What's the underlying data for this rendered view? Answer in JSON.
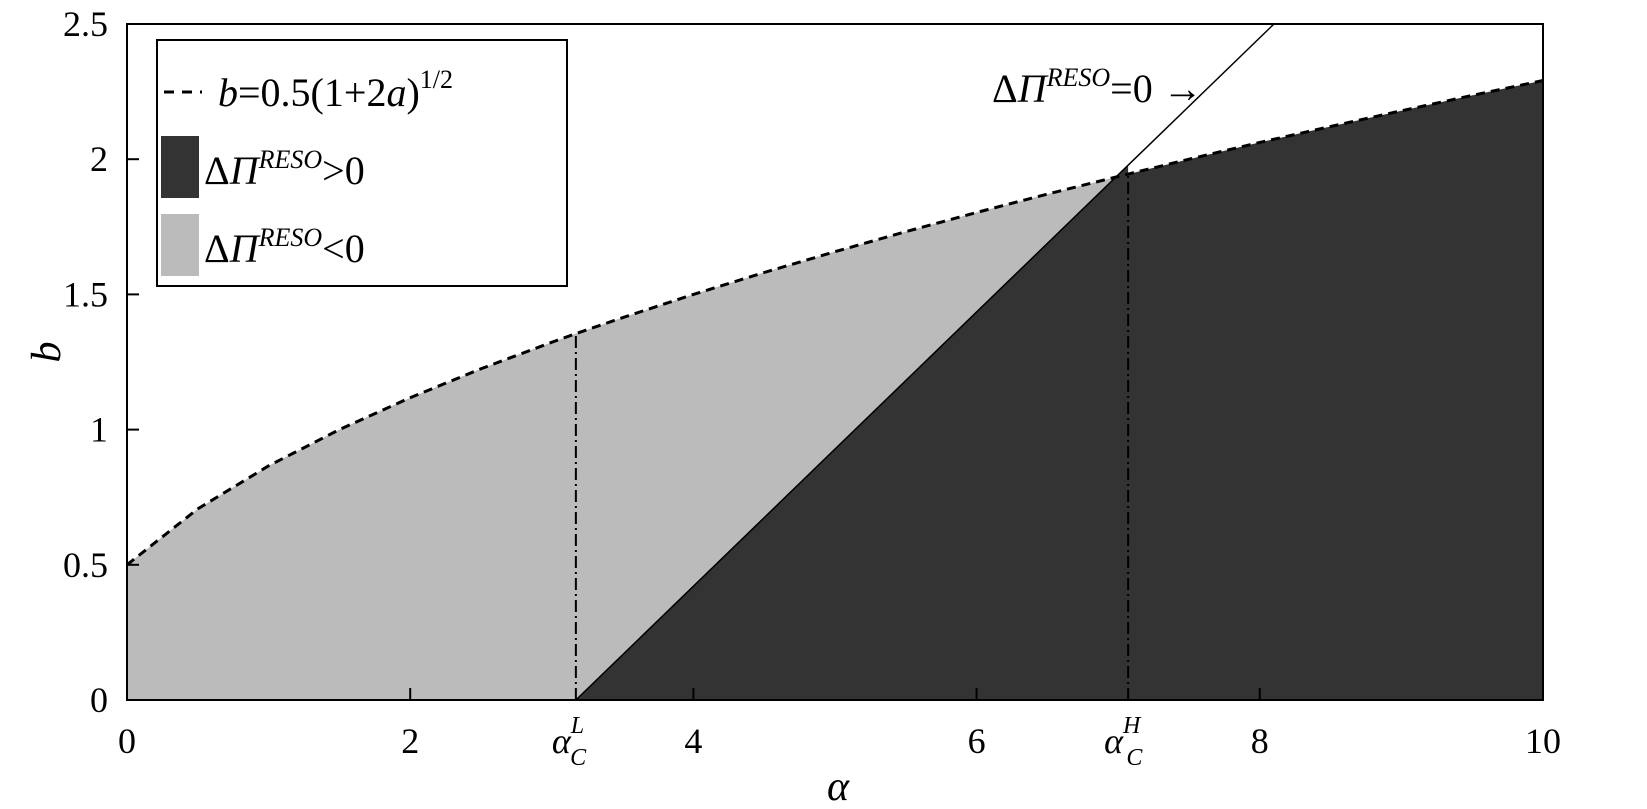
{
  "chart_data": {
    "type": "area",
    "xlabel": "α",
    "ylabel": "b",
    "xlim": [
      0,
      10
    ],
    "ylim": [
      0,
      2.5
    ],
    "x_ticks": [
      "0",
      "2",
      "4",
      "6",
      "8",
      "10"
    ],
    "y_ticks": [
      "0",
      "0.5",
      "1",
      "1.5",
      "2",
      "2.5"
    ],
    "special_x_ticks": [
      {
        "x": 3.17,
        "base": "α",
        "sub": "C",
        "sup": "L"
      },
      {
        "x": 7.07,
        "base": "α",
        "sub": "C",
        "sup": "H"
      }
    ],
    "boundary_curve": {
      "formula": "b=0.5(1+2a)^(1/2)",
      "legend_label": {
        "pre": "b",
        "mid": "=0.5(1+2",
        "it": "a",
        "post": ")",
        "sup": "1/2"
      },
      "style": "dashed",
      "points": [
        [
          0,
          0.5
        ],
        [
          0.5,
          0.707
        ],
        [
          1,
          0.866
        ],
        [
          1.5,
          1.0
        ],
        [
          2,
          1.118
        ],
        [
          2.5,
          1.225
        ],
        [
          3,
          1.323
        ],
        [
          3.17,
          1.355
        ],
        [
          3.5,
          1.414
        ],
        [
          4,
          1.5
        ],
        [
          4.5,
          1.581
        ],
        [
          5,
          1.658
        ],
        [
          5.5,
          1.732
        ],
        [
          6,
          1.803
        ],
        [
          6.5,
          1.871
        ],
        [
          7,
          1.936
        ],
        [
          7.07,
          1.945
        ],
        [
          7.5,
          2.0
        ],
        [
          8,
          2.062
        ],
        [
          8.5,
          2.121
        ],
        [
          9,
          2.179
        ],
        [
          9.5,
          2.236
        ],
        [
          10,
          2.291
        ]
      ]
    },
    "zero_line": {
      "label": {
        "delta": "Δ",
        "pi": "Π",
        "sup": "RESO",
        "rest": "=0"
      },
      "arrow": "→",
      "points": [
        [
          3.17,
          0
        ],
        [
          8.1,
          2.5
        ]
      ]
    },
    "regions": [
      {
        "name": "positive",
        "color": "#333333",
        "legend": {
          "delta": "Δ",
          "pi": "Π",
          "sup": "RESO",
          "rest": ">0"
        }
      },
      {
        "name": "negative",
        "color": "#bbbbbb",
        "legend": {
          "delta": "Δ",
          "pi": "Π",
          "sup": "RESO",
          "rest": "<0"
        }
      }
    ],
    "vertical_markers": [
      {
        "x": 3.17,
        "style": "dash-dot"
      },
      {
        "x": 7.07,
        "style": "dash-dot"
      }
    ],
    "legend_position": "top-left",
    "grid": false
  }
}
